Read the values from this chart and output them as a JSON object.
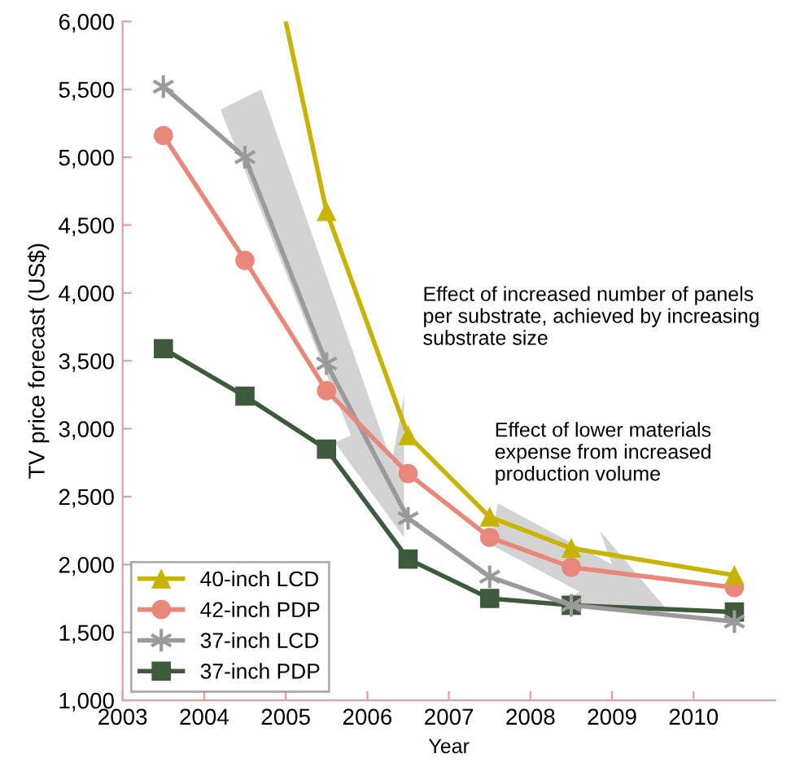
{
  "chart_data": {
    "type": "line",
    "xlabel": "Year",
    "ylabel": "TV price forecast (US$)",
    "xlim": [
      2003,
      2011
    ],
    "xticks": [
      2003,
      2004,
      2005,
      2006,
      2007,
      2008,
      2009,
      2010
    ],
    "ylim": [
      1000,
      6000
    ],
    "yticks": [
      {
        "value": 1000,
        "label": "1,000"
      },
      {
        "value": 1500,
        "label": "1,500"
      },
      {
        "value": 2000,
        "label": "2,000"
      },
      {
        "value": 2500,
        "label": "2,500"
      },
      {
        "value": 3000,
        "label": "3,000"
      },
      {
        "value": 3500,
        "label": "3,500"
      },
      {
        "value": 4000,
        "label": "4,000"
      },
      {
        "value": 4500,
        "label": "4,500"
      },
      {
        "value": 5000,
        "label": "5,000"
      },
      {
        "value": 5500,
        "label": "5,500"
      },
      {
        "value": 6000,
        "label": "6,000"
      }
    ],
    "grid": false,
    "legend": "bottom left",
    "series": [
      {
        "name": "40-inch LCD",
        "color": "#c8b400",
        "marker": "triangle",
        "x": [
          2005.0,
          2005.5,
          2006.5,
          2007.5,
          2008.5,
          2010.5
        ],
        "values": [
          6000,
          4600,
          2950,
          2350,
          2120,
          1920
        ]
      },
      {
        "name": "42-inch PDP",
        "color": "#e8877a",
        "marker": "circle",
        "x": [
          2003.5,
          2004.5,
          2005.5,
          2006.5,
          2007.5,
          2008.5,
          2010.5
        ],
        "values": [
          5160,
          4240,
          3280,
          2670,
          2200,
          1980,
          1830
        ]
      },
      {
        "name": "37-inch LCD",
        "color": "#9a9a9a",
        "marker": "cross",
        "x": [
          2003.5,
          2004.5,
          2005.5,
          2006.5,
          2007.5,
          2008.5,
          2010.5
        ],
        "values": [
          5520,
          5000,
          3480,
          2340,
          1910,
          1700,
          1580
        ]
      },
      {
        "name": "37-inch PDP",
        "color": "#3d5a3c",
        "marker": "square",
        "x": [
          2003.5,
          2004.5,
          2005.5,
          2006.5,
          2007.5,
          2008.5,
          2010.5
        ],
        "values": [
          3590,
          3240,
          2850,
          2040,
          1750,
          1700,
          1650
        ]
      }
    ],
    "annotations": [
      "Effect of increased number of panels\nper substrate, achieved by increasing\nsubstrate size",
      "Effect of lower materials\nexpense from increased\nproduction volume"
    ]
  }
}
